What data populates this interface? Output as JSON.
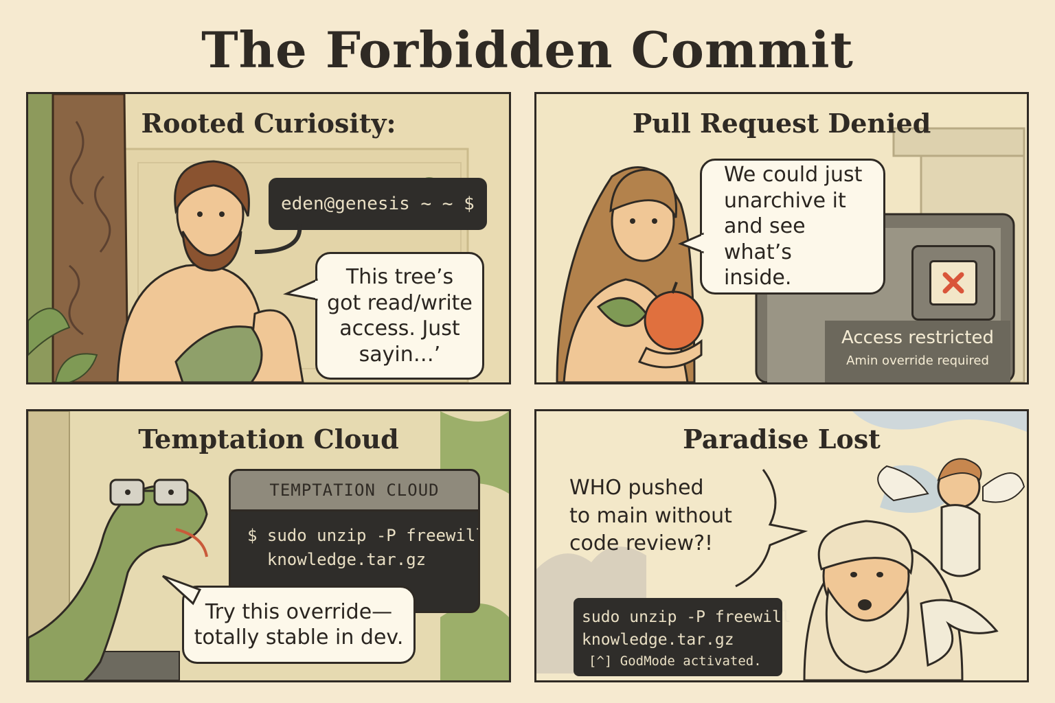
{
  "title": "The Forbidden Commit",
  "panels": [
    {
      "title": "Rooted  Curiosity:",
      "terminal_prompt": "eden@genesis ~ ~ $",
      "speech": "This tree’s\ngot read/write\naccess.  Just\nsayin…’"
    },
    {
      "title": "Pull Request Denied",
      "speech": "We could just\nunarchive it\nand see what’s\ninside.",
      "status_icon": "x-icon",
      "status_title": "Access restricted",
      "status_subtitle": "Amin override required"
    },
    {
      "title": "Temptation Cloud",
      "window_title": "TEMPTATION  CLOUD",
      "command_line1": "$ sudo unzip -P freewill",
      "command_line2": "  knowledge.tar.gz",
      "speech": "Try this override—\ntotally stable in dev."
    },
    {
      "title": "Paradise Lost",
      "speech": "WHO pushed\nto main without\ncode review?!",
      "terminal_line1": "sudo unzip -P freewill",
      "terminal_line2": "knowledge.tar.gz",
      "terminal_line3": "[^] GodMode activated."
    }
  ],
  "colors": {
    "ink": "#2f2a24",
    "paper": "#f6ead0",
    "terminal": "#2f2d2a",
    "apple": "#e0703e",
    "error_x": "#d9553a"
  }
}
